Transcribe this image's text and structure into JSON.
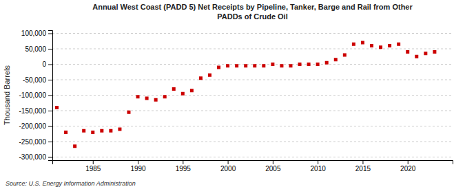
{
  "chart_data": {
    "type": "scatter",
    "title": "Annual West Coast (PADD 5) Net Receipts by Pipeline, Tanker, Barge and Rail from Other\nPADDs of Crude Oil",
    "ylabel": "Thousand Barrels",
    "source": "Source: U.S. Energy Information Administration",
    "color": "#cc0000",
    "marker": "square",
    "grid": true,
    "xlim": [
      1980.5,
      2025
    ],
    "ylim": [
      -310000,
      110000
    ],
    "xticks": [
      1985,
      1990,
      1995,
      2000,
      2005,
      2010,
      2015,
      2020
    ],
    "yticks": [
      {
        "value": -300000,
        "label": "-300,000"
      },
      {
        "value": -250000,
        "label": "-250,000"
      },
      {
        "value": -200000,
        "label": "-200,000"
      },
      {
        "value": -150000,
        "label": "-150,000"
      },
      {
        "value": -100000,
        "label": "-100,000"
      },
      {
        "value": -50000,
        "label": "-50,000"
      },
      0,
      {
        "value": 50000,
        "label": "50,000"
      },
      {
        "value": 100000,
        "label": "100,000"
      }
    ],
    "x": [
      1981,
      1982,
      1983,
      1984,
      1985,
      1986,
      1987,
      1988,
      1989,
      1990,
      1991,
      1992,
      1993,
      1994,
      1995,
      1996,
      1997,
      1998,
      1999,
      2000,
      2001,
      2002,
      2003,
      2004,
      2005,
      2006,
      2007,
      2008,
      2009,
      2010,
      2011,
      2012,
      2013,
      2014,
      2015,
      2016,
      2017,
      2018,
      2019,
      2020,
      2021,
      2022,
      2023
    ],
    "values": [
      -140000,
      -220000,
      -265000,
      -215000,
      -220000,
      -215000,
      -215000,
      -210000,
      -155000,
      -105000,
      -110000,
      -115000,
      -105000,
      -80000,
      -95000,
      -85000,
      -45000,
      -35000,
      -10000,
      -5000,
      -5000,
      -5000,
      -5000,
      -5000,
      0,
      -5000,
      -5000,
      0,
      0,
      0,
      5000,
      15000,
      30000,
      65000,
      70000,
      60000,
      55000,
      60000,
      65000,
      40000,
      25000,
      35000,
      40000
    ]
  }
}
